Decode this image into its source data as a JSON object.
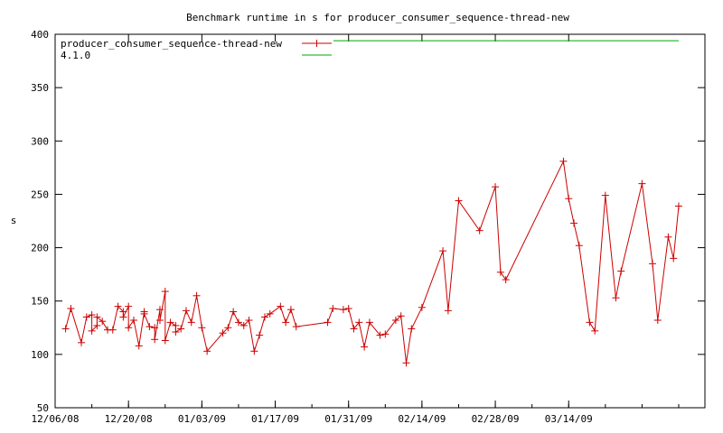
{
  "chart_data": {
    "type": "line",
    "title": "Benchmark runtime in s for producer_consumer_sequence-thread-new",
    "xlabel": "",
    "ylabel": "s",
    "x_range": [
      "2008-12-06",
      "2009-04-09"
    ],
    "x_ticks": [
      "12/06/08",
      "12/20/08",
      "01/03/09",
      "01/17/09",
      "01/31/09",
      "02/14/09",
      "02/28/09",
      "03/14/09"
    ],
    "ylim": [
      50,
      400
    ],
    "y_ticks": [
      50,
      100,
      150,
      200,
      250,
      300,
      350,
      400
    ],
    "grid": false,
    "legend_position": "top-left",
    "series": [
      {
        "name": "producer_consumer_sequence-thread-new",
        "color": "#cc0000",
        "marker": "plus",
        "points": [
          [
            "2008-12-08",
            124
          ],
          [
            "2008-12-09",
            143
          ],
          [
            "2008-12-11",
            111
          ],
          [
            "2008-12-12",
            135
          ],
          [
            "2008-12-13",
            137
          ],
          [
            "2008-12-13",
            122
          ],
          [
            "2008-12-14",
            127
          ],
          [
            "2008-12-14",
            135
          ],
          [
            "2008-12-15",
            131
          ],
          [
            "2008-12-16",
            123
          ],
          [
            "2008-12-17",
            123
          ],
          [
            "2008-12-18",
            145
          ],
          [
            "2008-12-19",
            140
          ],
          [
            "2008-12-19",
            135
          ],
          [
            "2008-12-20",
            145
          ],
          [
            "2008-12-20",
            125
          ],
          [
            "2008-12-21",
            132
          ],
          [
            "2008-12-22",
            108
          ],
          [
            "2008-12-23",
            140
          ],
          [
            "2008-12-23",
            138
          ],
          [
            "2008-12-24",
            126
          ],
          [
            "2008-12-25",
            125
          ],
          [
            "2008-12-25",
            114
          ],
          [
            "2008-12-26",
            142
          ],
          [
            "2008-12-26",
            132
          ],
          [
            "2008-12-27",
            159
          ],
          [
            "2008-12-27",
            113
          ],
          [
            "2008-12-28",
            130
          ],
          [
            "2008-12-29",
            127
          ],
          [
            "2008-12-29",
            121
          ],
          [
            "2008-12-30",
            124
          ],
          [
            "2008-12-31",
            141
          ],
          [
            "2009-01-01",
            130
          ],
          [
            "2009-01-02",
            155
          ],
          [
            "2009-01-03",
            125
          ],
          [
            "2009-01-04",
            103
          ],
          [
            "2009-01-07",
            120
          ],
          [
            "2009-01-08",
            125
          ],
          [
            "2009-01-09",
            140
          ],
          [
            "2009-01-10",
            130
          ],
          [
            "2009-01-11",
            127
          ],
          [
            "2009-01-12",
            132
          ],
          [
            "2009-01-13",
            103
          ],
          [
            "2009-01-14",
            118
          ],
          [
            "2009-01-15",
            135
          ],
          [
            "2009-01-16",
            138
          ],
          [
            "2009-01-18",
            145
          ],
          [
            "2009-01-19",
            130
          ],
          [
            "2009-01-20",
            142
          ],
          [
            "2009-01-21",
            126
          ],
          [
            "2009-01-27",
            130
          ],
          [
            "2009-01-28",
            143
          ],
          [
            "2009-01-30",
            142
          ],
          [
            "2009-01-31",
            143
          ],
          [
            "2009-02-01",
            124
          ],
          [
            "2009-02-02",
            130
          ],
          [
            "2009-02-03",
            107
          ],
          [
            "2009-02-04",
            130
          ],
          [
            "2009-02-06",
            118
          ],
          [
            "2009-02-07",
            119
          ],
          [
            "2009-02-09",
            132
          ],
          [
            "2009-02-10",
            136
          ],
          [
            "2009-02-11",
            92
          ],
          [
            "2009-02-12",
            124
          ],
          [
            "2009-02-14",
            144
          ],
          [
            "2009-02-18",
            197
          ],
          [
            "2009-02-19",
            141
          ],
          [
            "2009-02-21",
            244
          ],
          [
            "2009-02-25",
            216
          ],
          [
            "2009-02-28",
            257
          ],
          [
            "2009-03-01",
            177
          ],
          [
            "2009-03-02",
            170
          ],
          [
            "2009-03-13",
            281
          ],
          [
            "2009-03-14",
            246
          ],
          [
            "2009-03-15",
            223
          ],
          [
            "2009-03-16",
            202
          ],
          [
            "2009-03-18",
            130
          ],
          [
            "2009-03-19",
            122
          ],
          [
            "2009-03-21",
            249
          ],
          [
            "2009-03-23",
            153
          ],
          [
            "2009-03-24",
            178
          ],
          [
            "2009-03-28",
            260
          ],
          [
            "2009-03-30",
            185
          ],
          [
            "2009-03-31",
            132
          ],
          [
            "2009-04-02",
            210
          ],
          [
            "2009-04-03",
            190
          ],
          [
            "2009-04-04",
            239
          ]
        ]
      },
      {
        "name": "4.1.0",
        "color": "#00aa00",
        "marker": "none",
        "points": [
          [
            "2009-04-04",
            394
          ]
        ]
      }
    ]
  }
}
